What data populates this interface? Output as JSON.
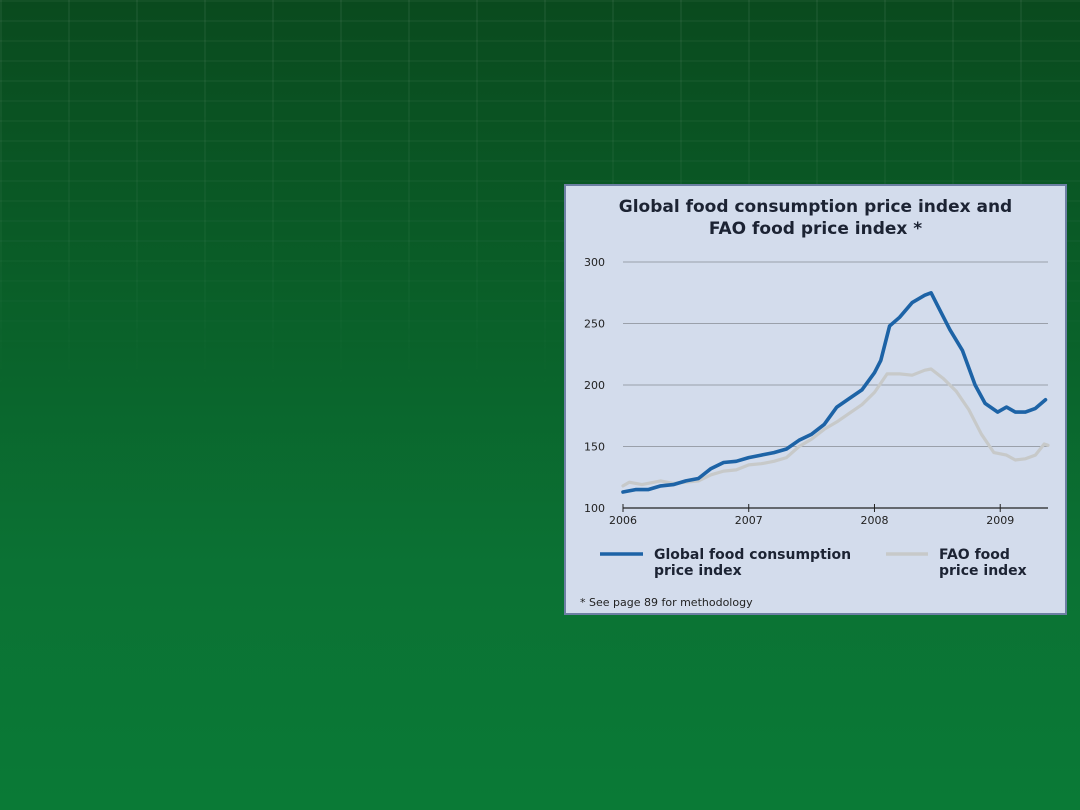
{
  "chart_data": {
    "type": "line",
    "title_lines": [
      "Global food consumption price index and",
      "FAO food price index *"
    ],
    "xlabel": "",
    "ylabel": "",
    "xlim": [
      2006,
      2009.38
    ],
    "ylim": [
      100,
      300
    ],
    "x_ticks": [
      2006,
      2007,
      2008,
      2009
    ],
    "x_tick_labels": [
      "2006",
      "2007",
      "2008",
      "2009"
    ],
    "y_ticks": [
      100,
      150,
      200,
      250,
      300
    ],
    "y_tick_labels": [
      "100",
      "150",
      "200",
      "250",
      "300"
    ],
    "grid": "horizontal",
    "legend_position": "bottom",
    "series": [
      {
        "name": "Global food consumption price index",
        "legend_lines": [
          "Global food consumption",
          "price index"
        ],
        "color": "#1d63a6",
        "points": [
          [
            2006.0,
            113
          ],
          [
            2006.1,
            115
          ],
          [
            2006.2,
            115
          ],
          [
            2006.3,
            118
          ],
          [
            2006.4,
            119
          ],
          [
            2006.5,
            122
          ],
          [
            2006.6,
            124
          ],
          [
            2006.7,
            132
          ],
          [
            2006.8,
            137
          ],
          [
            2006.9,
            138
          ],
          [
            2007.0,
            141
          ],
          [
            2007.1,
            143
          ],
          [
            2007.2,
            145
          ],
          [
            2007.3,
            148
          ],
          [
            2007.4,
            155
          ],
          [
            2007.5,
            160
          ],
          [
            2007.6,
            168
          ],
          [
            2007.7,
            182
          ],
          [
            2007.8,
            189
          ],
          [
            2007.9,
            196
          ],
          [
            2008.0,
            210
          ],
          [
            2008.05,
            220
          ],
          [
            2008.12,
            248
          ],
          [
            2008.2,
            255
          ],
          [
            2008.3,
            267
          ],
          [
            2008.4,
            273
          ],
          [
            2008.45,
            275
          ],
          [
            2008.5,
            265
          ],
          [
            2008.6,
            245
          ],
          [
            2008.7,
            228
          ],
          [
            2008.8,
            200
          ],
          [
            2008.88,
            185
          ],
          [
            2008.98,
            178
          ],
          [
            2009.05,
            182
          ],
          [
            2009.12,
            178
          ],
          [
            2009.2,
            178
          ],
          [
            2009.28,
            181
          ],
          [
            2009.36,
            188
          ]
        ]
      },
      {
        "name": "FAO food price index",
        "legend_lines": [
          "FAO food",
          "price index"
        ],
        "color": "#c7c9c9",
        "points": [
          [
            2006.0,
            118
          ],
          [
            2006.05,
            121
          ],
          [
            2006.15,
            119
          ],
          [
            2006.25,
            121
          ],
          [
            2006.3,
            122
          ],
          [
            2006.4,
            120
          ],
          [
            2006.5,
            121
          ],
          [
            2006.6,
            122
          ],
          [
            2006.7,
            127
          ],
          [
            2006.8,
            130
          ],
          [
            2006.9,
            131
          ],
          [
            2007.0,
            135
          ],
          [
            2007.1,
            136
          ],
          [
            2007.2,
            138
          ],
          [
            2007.3,
            141
          ],
          [
            2007.4,
            150
          ],
          [
            2007.5,
            156
          ],
          [
            2007.6,
            164
          ],
          [
            2007.7,
            170
          ],
          [
            2007.8,
            177
          ],
          [
            2007.9,
            184
          ],
          [
            2008.0,
            194
          ],
          [
            2008.1,
            209
          ],
          [
            2008.2,
            209
          ],
          [
            2008.3,
            208
          ],
          [
            2008.4,
            212
          ],
          [
            2008.45,
            213
          ],
          [
            2008.55,
            205
          ],
          [
            2008.65,
            195
          ],
          [
            2008.75,
            180
          ],
          [
            2008.85,
            160
          ],
          [
            2008.95,
            145
          ],
          [
            2009.05,
            143
          ],
          [
            2009.12,
            139
          ],
          [
            2009.2,
            140
          ],
          [
            2009.28,
            143
          ],
          [
            2009.35,
            152
          ],
          [
            2009.38,
            151
          ]
        ]
      }
    ],
    "footnote": "* See page 89 for methodology"
  },
  "colors": {
    "background": "#0a6a30",
    "panel": "#d3dcec",
    "panel_border": "#6d7fa3",
    "grid": "#9aa0aa",
    "text": "#1c2333"
  }
}
